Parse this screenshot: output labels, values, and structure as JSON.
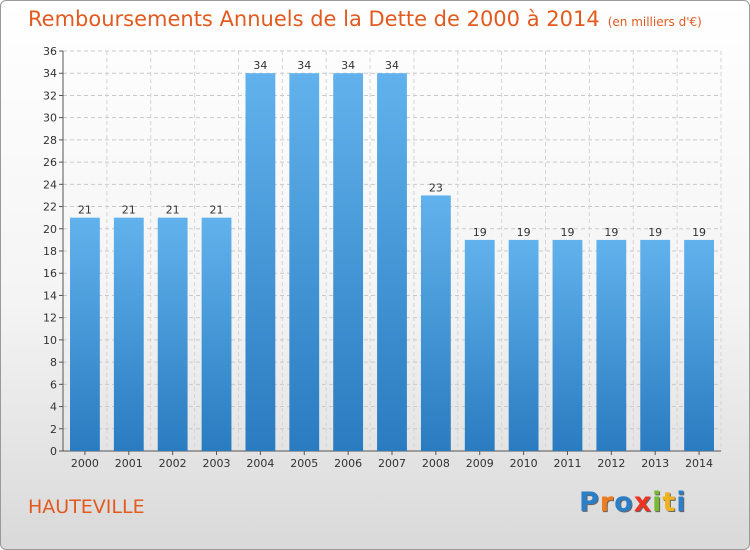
{
  "header": {
    "title": "Remboursements Annuels de la Dette de 2000 à 2014",
    "unit": "(en milliers d'€)"
  },
  "commune": "HAUTEVILLE",
  "logo": {
    "text": "Proxiti",
    "letters": [
      "P",
      "r",
      "o",
      "x",
      "i",
      "t",
      "i"
    ],
    "colors": [
      "#2a7fc8",
      "#f07c1d",
      "#2a7fc8",
      "#ee3322",
      "#7ab82e",
      "#f0b21d",
      "#2a7fc8"
    ]
  },
  "colors": {
    "bar_top": "#61b2ec",
    "bar_bottom": "#2a7bc0",
    "text_accent": "#e35a1f"
  },
  "chart_data": {
    "type": "bar",
    "title": "Remboursements Annuels de la Dette de 2000 à 2014",
    "subtitle": "(en milliers d'€)",
    "categories": [
      "2000",
      "2001",
      "2002",
      "2003",
      "2004",
      "2005",
      "2006",
      "2007",
      "2008",
      "2009",
      "2010",
      "2011",
      "2012",
      "2013",
      "2014"
    ],
    "values": [
      21,
      21,
      21,
      21,
      34,
      34,
      34,
      34,
      23,
      19,
      19,
      19,
      19,
      19,
      19
    ],
    "ylim": [
      0,
      36
    ],
    "yticks": [
      0,
      2,
      4,
      6,
      8,
      10,
      12,
      14,
      16,
      18,
      20,
      22,
      24,
      26,
      28,
      30,
      32,
      34,
      36
    ],
    "grid": true,
    "legend": "none"
  }
}
